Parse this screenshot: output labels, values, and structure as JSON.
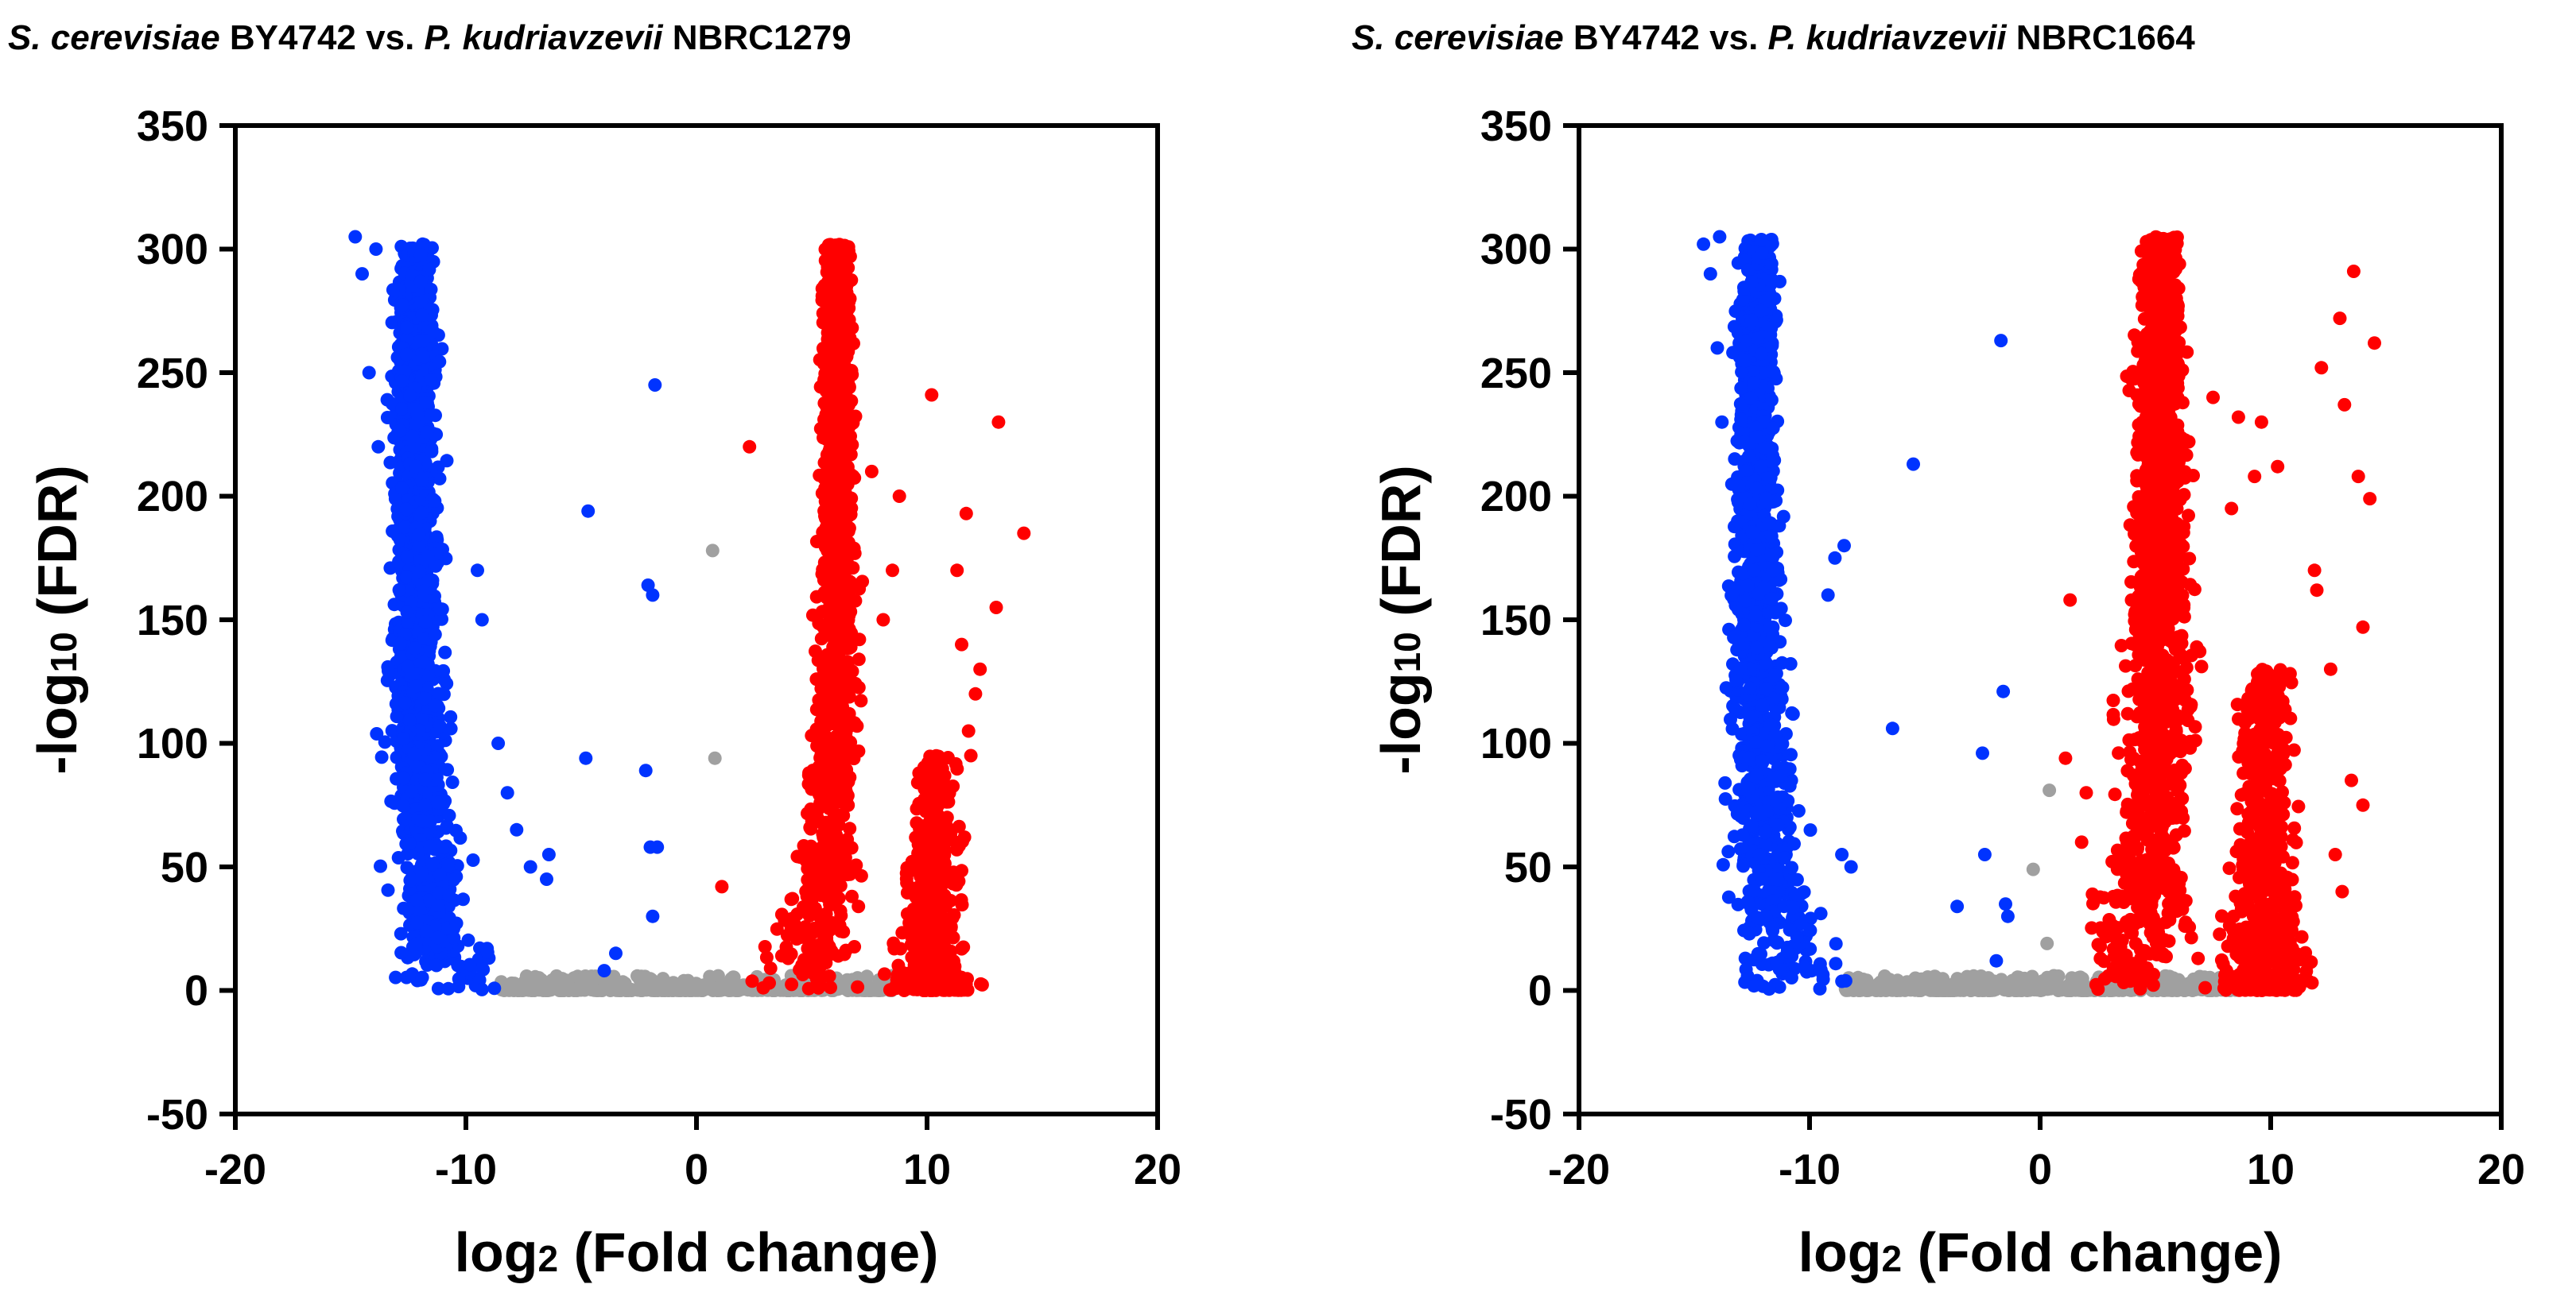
{
  "figure": {
    "type": "volcano plot pair",
    "colors": {
      "down": "#0033ff",
      "up": "#ff0000",
      "ns": "#a0a0a0",
      "axis": "#000000",
      "background": "#ffffff"
    }
  },
  "chart_data": [
    {
      "type": "scatter",
      "title_parts": [
        {
          "text": "S. cerevisiae",
          "italic": true
        },
        {
          "text": " BY4742 vs. ",
          "italic": false
        },
        {
          "text": "P. kudriavzevii",
          "italic": true
        },
        {
          "text": " NBRC1279",
          "italic": false
        }
      ],
      "xlabel": {
        "base": "log",
        "sub": "2",
        "rest": " (Fold change)"
      },
      "ylabel": {
        "base": "-log",
        "sub": "10",
        "rest": " (FDR)"
      },
      "xlim": [
        -20,
        20
      ],
      "ylim": [
        -50,
        350
      ],
      "xticks": [
        "-20",
        "-10",
        "0",
        "10",
        "20"
      ],
      "yticks": [
        "350",
        "300",
        "250",
        "200",
        "150",
        "100",
        "50",
        "0",
        "-50"
      ],
      "clusters": [
        {
          "series": "down",
          "x_center": -12.2,
          "x_spread": 1.3,
          "y_max": 302,
          "y_min": 0,
          "count": 1400,
          "shape": "left_arm"
        },
        {
          "series": "up",
          "x_center": 6.1,
          "x_spread": 1.0,
          "y_max": 302,
          "y_min": 0,
          "count": 1300,
          "shape": "right_arm"
        },
        {
          "series": "up",
          "x_center": 10.3,
          "x_spread": 1.3,
          "y_max": 95,
          "y_min": 0,
          "count": 450,
          "shape": "lobe"
        },
        {
          "series": "ns",
          "x_center": 0,
          "x_spread": 8.5,
          "y_max": 6,
          "y_min": 0,
          "count": 500,
          "shape": "baseline"
        }
      ],
      "series": [
        {
          "name": "down",
          "points": [
            [
              -14.8,
              305
            ],
            [
              -14.5,
              290
            ],
            [
              -13.9,
              300
            ],
            [
              -14.2,
              250
            ],
            [
              -13.8,
              220
            ],
            [
              -4.7,
              194
            ],
            [
              -4.8,
              94
            ],
            [
              -1.8,
              245
            ],
            [
              -2.1,
              164
            ],
            [
              -1.9,
              160
            ],
            [
              -2.2,
              89
            ],
            [
              -1.7,
              58
            ],
            [
              -2.0,
              58
            ],
            [
              -1.9,
              30
            ],
            [
              -9.5,
              170
            ],
            [
              -9.3,
              150
            ],
            [
              -8.6,
              100
            ],
            [
              -8.2,
              80
            ],
            [
              -7.8,
              65
            ],
            [
              -6.4,
              55
            ],
            [
              -6.5,
              45
            ],
            [
              -7.2,
              50
            ],
            [
              -3.5,
              15
            ],
            [
              -4.0,
              8
            ]
          ]
        },
        {
          "name": "up",
          "points": [
            [
              2.3,
              220
            ],
            [
              1.1,
              42
            ],
            [
              10.2,
              241
            ],
            [
              13.1,
              230
            ],
            [
              14.2,
              185
            ],
            [
              11.7,
              193
            ],
            [
              11.3,
              170
            ],
            [
              13.0,
              155
            ],
            [
              8.5,
              170
            ],
            [
              8.8,
              200
            ],
            [
              11.5,
              140
            ],
            [
              12.3,
              130
            ],
            [
              12.1,
              120
            ],
            [
              11.8,
              105
            ],
            [
              11.9,
              95
            ],
            [
              7.6,
              210
            ],
            [
              8.1,
              150
            ]
          ]
        },
        {
          "name": "ns",
          "points": [
            [
              0.7,
              178
            ],
            [
              0.8,
              94
            ],
            [
              -1.0,
              3
            ],
            [
              0.3,
              2
            ],
            [
              1.5,
              1
            ],
            [
              -0.5,
              0
            ]
          ]
        }
      ]
    },
    {
      "type": "scatter",
      "title_parts": [
        {
          "text": "S. cerevisiae",
          "italic": true
        },
        {
          "text": " BY4742 vs. ",
          "italic": false
        },
        {
          "text": "P. kudriavzevii",
          "italic": true
        },
        {
          "text": " NBRC1664",
          "italic": false
        }
      ],
      "xlabel": {
        "base": "log",
        "sub": "2",
        "rest": " (Fold change)"
      },
      "ylabel": {
        "base": "-log",
        "sub": "10",
        "rest": " (FDR)"
      },
      "xlim": [
        -20,
        20
      ],
      "ylim": [
        -50,
        350
      ],
      "xticks": [
        "-20",
        "-10",
        "0",
        "10",
        "20"
      ],
      "yticks": [
        "350",
        "300",
        "250",
        "200",
        "150",
        "100",
        "50",
        "0",
        "-50"
      ],
      "clusters": [
        {
          "series": "down",
          "x_center": -12.3,
          "x_spread": 1.2,
          "y_max": 304,
          "y_min": 0,
          "count": 1400,
          "shape": "left_arm"
        },
        {
          "series": "up",
          "x_center": 5.2,
          "x_spread": 1.5,
          "y_max": 305,
          "y_min": 0,
          "count": 1500,
          "shape": "right_arm"
        },
        {
          "series": "up",
          "x_center": 9.8,
          "x_spread": 1.5,
          "y_max": 130,
          "y_min": 0,
          "count": 600,
          "shape": "lobe"
        },
        {
          "series": "ns",
          "x_center": 0,
          "x_spread": 8.5,
          "y_max": 6,
          "y_min": 0,
          "count": 500,
          "shape": "baseline"
        }
      ],
      "series": [
        {
          "name": "down",
          "points": [
            [
              -14.6,
              302
            ],
            [
              -14.3,
              290
            ],
            [
              -13.9,
              305
            ],
            [
              -14.0,
              260
            ],
            [
              -13.8,
              230
            ],
            [
              -5.5,
              213
            ],
            [
              -1.7,
              263
            ],
            [
              -1.6,
              121
            ],
            [
              -6.4,
              106
            ],
            [
              -2.5,
              96
            ],
            [
              -8.5,
              180
            ],
            [
              -8.9,
              175
            ],
            [
              -9.2,
              160
            ],
            [
              -3.6,
              34
            ],
            [
              -1.5,
              35
            ],
            [
              -1.4,
              30
            ],
            [
              -2.4,
              55
            ],
            [
              -8.2,
              50
            ],
            [
              -8.6,
              55
            ],
            [
              -1.9,
              12
            ]
          ]
        },
        {
          "name": "up",
          "points": [
            [
              1.1,
              94
            ],
            [
              1.3,
              158
            ],
            [
              14.5,
              262
            ],
            [
              13.6,
              291
            ],
            [
              13.0,
              272
            ],
            [
              12.2,
              252
            ],
            [
              13.2,
              237
            ],
            [
              14.3,
              199
            ],
            [
              13.8,
              208
            ],
            [
              14.0,
              147
            ],
            [
              8.6,
              232
            ],
            [
              9.6,
              230
            ],
            [
              10.3,
              212
            ],
            [
              9.3,
              208
            ],
            [
              11.9,
              170
            ],
            [
              12.0,
              162
            ],
            [
              7.5,
              240
            ],
            [
              8.3,
              195
            ],
            [
              12.6,
              130
            ],
            [
              13.5,
              85
            ],
            [
              14.0,
              75
            ],
            [
              12.8,
              55
            ],
            [
              13.1,
              40
            ],
            [
              2.0,
              80
            ],
            [
              1.8,
              60
            ]
          ]
        },
        {
          "name": "ns",
          "points": [
            [
              0.4,
              81
            ],
            [
              -0.3,
              49
            ],
            [
              0.3,
              19
            ],
            [
              -1.2,
              4
            ],
            [
              0.8,
              2
            ],
            [
              -0.2,
              1
            ],
            [
              1.6,
              3
            ]
          ]
        }
      ]
    }
  ]
}
